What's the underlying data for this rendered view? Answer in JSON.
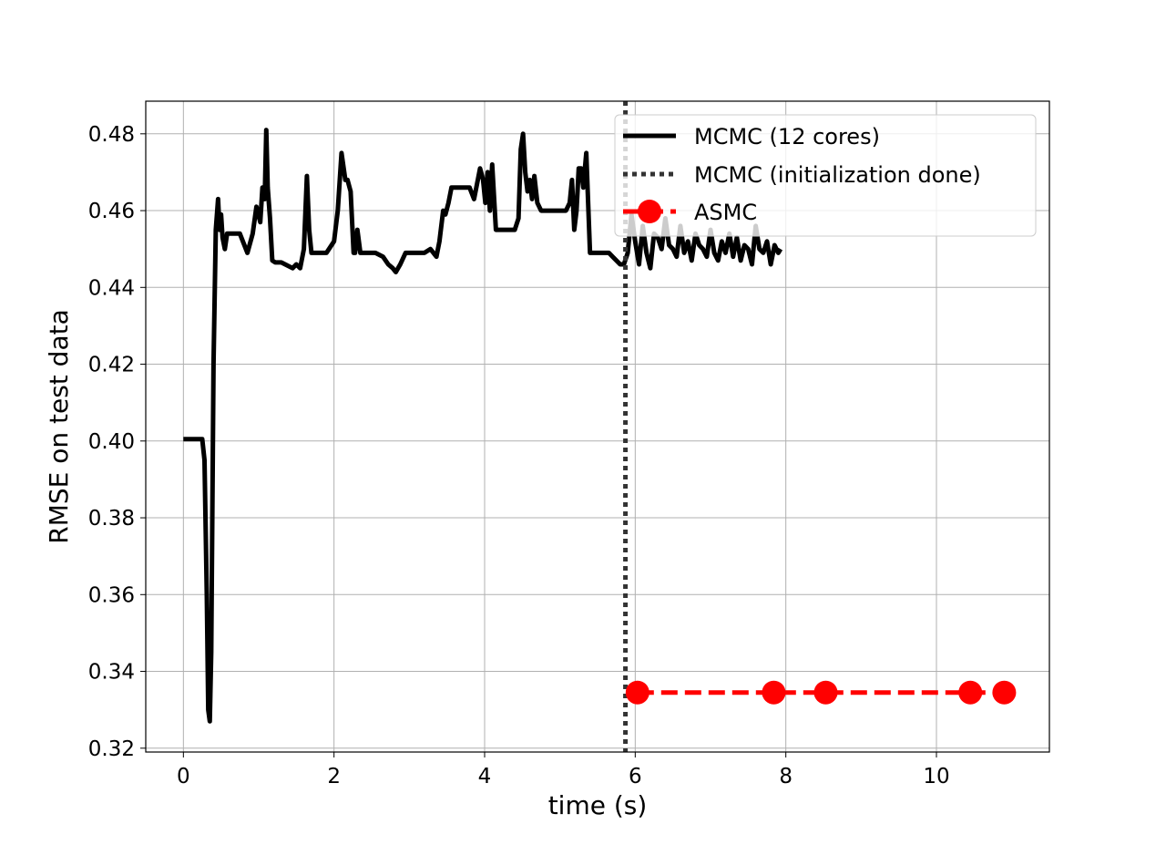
{
  "chart_data": {
    "type": "line",
    "xlabel": "time (s)",
    "ylabel": "RMSE on test data",
    "xlim": [
      -0.5,
      11.5
    ],
    "ylim": [
      0.319,
      0.4885
    ],
    "xticks": [
      0,
      2,
      4,
      6,
      8,
      10
    ],
    "yticks": [
      0.32,
      0.34,
      0.36,
      0.38,
      0.4,
      0.42,
      0.44,
      0.46,
      0.48
    ],
    "grid": true,
    "legend_position": "top-right",
    "vline": {
      "name": "MCMC (initialization done)",
      "x": 5.87,
      "color": "#333333",
      "style": "dotted"
    },
    "series": [
      {
        "name": "MCMC (12 cores)",
        "color": "#000000",
        "style": "solid",
        "x": [
          0.0,
          0.25,
          0.28,
          0.31,
          0.33,
          0.35,
          0.37,
          0.4,
          0.43,
          0.46,
          0.48,
          0.5,
          0.52,
          0.55,
          0.58,
          0.62,
          0.68,
          0.75,
          0.85,
          0.92,
          0.97,
          1.02,
          1.05,
          1.08,
          1.1,
          1.12,
          1.15,
          1.18,
          1.22,
          1.3,
          1.45,
          1.5,
          1.55,
          1.6,
          1.64,
          1.67,
          1.7,
          1.73,
          1.76,
          1.8,
          1.9,
          2.0,
          2.05,
          2.1,
          2.15,
          2.18,
          2.22,
          2.26,
          2.28,
          2.31,
          2.35,
          2.4,
          2.55,
          2.65,
          2.72,
          2.78,
          2.82,
          2.88,
          2.95,
          3.1,
          3.2,
          3.28,
          3.36,
          3.4,
          3.45,
          3.48,
          3.52,
          3.56,
          3.6,
          3.8,
          3.86,
          3.9,
          3.94,
          3.98,
          4.01,
          4.04,
          4.07,
          4.1,
          4.15,
          4.3,
          4.4,
          4.45,
          4.48,
          4.51,
          4.54,
          4.57,
          4.6,
          4.63,
          4.66,
          4.7,
          4.75,
          4.8,
          4.9,
          5.0,
          5.08,
          5.13,
          5.16,
          5.19,
          5.22,
          5.25,
          5.28,
          5.31,
          5.35,
          5.4,
          5.5,
          5.6,
          5.65,
          5.7,
          5.8,
          5.85,
          5.9,
          5.95,
          6.0,
          6.05,
          6.1,
          6.15,
          6.2,
          6.25,
          6.3,
          6.35,
          6.4,
          6.45,
          6.5,
          6.55,
          6.6,
          6.65,
          6.7,
          6.75,
          6.8,
          6.85,
          6.9,
          6.95,
          7.0,
          7.05,
          7.1,
          7.15,
          7.2,
          7.25,
          7.3,
          7.35,
          7.4,
          7.45,
          7.5,
          7.55,
          7.6,
          7.65,
          7.7,
          7.75,
          7.8,
          7.85,
          7.9,
          7.93
        ],
        "y": [
          0.4005,
          0.4005,
          0.395,
          0.36,
          0.33,
          0.327,
          0.345,
          0.42,
          0.455,
          0.463,
          0.455,
          0.459,
          0.453,
          0.45,
          0.454,
          0.454,
          0.454,
          0.454,
          0.449,
          0.454,
          0.461,
          0.457,
          0.466,
          0.463,
          0.481,
          0.466,
          0.458,
          0.447,
          0.4465,
          0.4465,
          0.445,
          0.446,
          0.445,
          0.45,
          0.469,
          0.455,
          0.449,
          0.449,
          0.449,
          0.449,
          0.449,
          0.452,
          0.46,
          0.475,
          0.468,
          0.468,
          0.465,
          0.449,
          0.449,
          0.455,
          0.449,
          0.449,
          0.449,
          0.448,
          0.446,
          0.445,
          0.444,
          0.446,
          0.449,
          0.449,
          0.449,
          0.45,
          0.448,
          0.452,
          0.46,
          0.459,
          0.462,
          0.466,
          0.466,
          0.466,
          0.463,
          0.467,
          0.471,
          0.468,
          0.462,
          0.47,
          0.46,
          0.472,
          0.455,
          0.455,
          0.455,
          0.458,
          0.476,
          0.48,
          0.47,
          0.465,
          0.468,
          0.463,
          0.469,
          0.462,
          0.46,
          0.46,
          0.46,
          0.46,
          0.46,
          0.462,
          0.468,
          0.455,
          0.46,
          0.471,
          0.471,
          0.466,
          0.475,
          0.449,
          0.449,
          0.449,
          0.449,
          0.448,
          0.446,
          0.446,
          0.449,
          0.459,
          0.452,
          0.446,
          0.456,
          0.449,
          0.445,
          0.454,
          0.453,
          0.45,
          0.458,
          0.451,
          0.45,
          0.448,
          0.456,
          0.449,
          0.452,
          0.447,
          0.454,
          0.451,
          0.45,
          0.448,
          0.455,
          0.449,
          0.447,
          0.452,
          0.449,
          0.454,
          0.448,
          0.453,
          0.447,
          0.451,
          0.45,
          0.446,
          0.456,
          0.45,
          0.449,
          0.452,
          0.446,
          0.451,
          0.449,
          0.45
        ]
      },
      {
        "name": "ASMC",
        "color": "#ff0000",
        "style": "dashed",
        "marker": "circle",
        "x": [
          6.03,
          7.84,
          8.53,
          10.45,
          10.9
        ],
        "y": [
          0.3345,
          0.3345,
          0.3345,
          0.3345,
          0.3345
        ]
      }
    ]
  }
}
